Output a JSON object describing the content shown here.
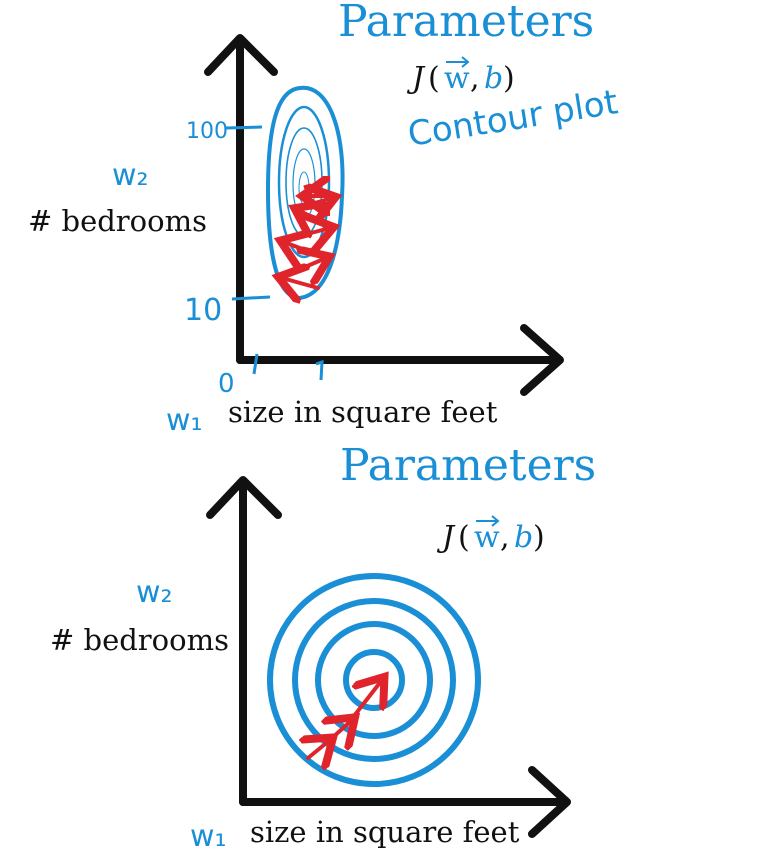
{
  "colors": {
    "blue": "#1a8fd6",
    "red": "#e0242b",
    "black": "#111111"
  },
  "panel_top": {
    "title": "Parameters",
    "cost": {
      "J": "J",
      "open": "(",
      "w": "w",
      "comma": ",",
      "b": "b",
      "close": ")"
    },
    "annotation": "Contour plot",
    "w2_label": "w₂",
    "y_label": "# bedrooms",
    "w1_label": "w₁",
    "x_label": "size in square feet",
    "tick_y_high": "100",
    "tick_y_low": "10",
    "tick_x_origin": "0",
    "tick_x_one": "1"
  },
  "panel_bottom": {
    "title": "Parameters",
    "cost": {
      "J": "J",
      "open": "(",
      "w": "w",
      "comma": ",",
      "b": "b",
      "close": ")"
    },
    "w2_label": "w₂",
    "y_label": "# bedrooms",
    "w1_label": "w₁",
    "x_label": "size in square feet"
  }
}
